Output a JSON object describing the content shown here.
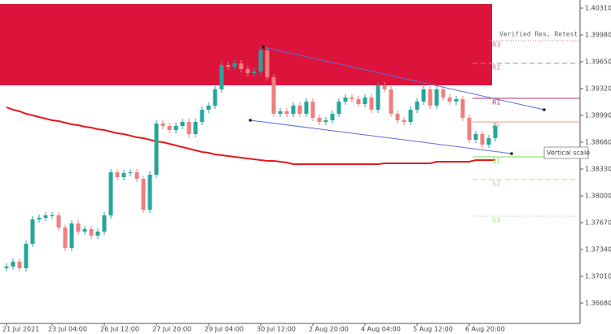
{
  "chart_data": {
    "type": "candlestick",
    "categories": [
      "21 Jul 2021",
      null,
      null,
      null,
      null,
      null,
      null,
      "23 Jul 04:00",
      null,
      null,
      null,
      null,
      null,
      null,
      null,
      "26 Jul 12:00",
      null,
      null,
      null,
      null,
      null,
      null,
      null,
      "27 Jul 20:00",
      null,
      null,
      null,
      null,
      null,
      null,
      null,
      "29 Jul 04:00",
      null,
      null,
      null,
      null,
      null,
      null,
      null,
      "30 Jul 12:00",
      null,
      null,
      null,
      null,
      null,
      null,
      null,
      "2 Aug 20:00",
      null,
      null,
      null,
      null,
      null,
      null,
      null,
      "4 Aug 04:00",
      null,
      null,
      null,
      null,
      null,
      null,
      null,
      "5 Aug 12:00",
      null,
      null,
      null,
      null,
      null,
      null,
      null,
      "6 Aug 20:00",
      null,
      null,
      null,
      null
    ],
    "open": [
      1.3711,
      1.3713,
      1.3719,
      1.3711,
      1.3741,
      1.3771,
      1.3773,
      1.3776,
      1.3776,
      1.3761,
      1.3736,
      1.3766,
      1.3756,
      1.3759,
      1.3751,
      1.3756,
      1.3776,
      1.3829,
      1.3823,
      1.3828,
      1.3829,
      1.3821,
      1.3783,
      1.3826,
      1.3889,
      1.3886,
      1.3881,
      1.3886,
      1.3891,
      1.3876,
      1.3891,
      1.3906,
      1.3911,
      1.3931,
      1.3961,
      1.3959,
      1.3963,
      1.3956,
      1.3951,
      1.3953,
      1.3979,
      1.3946,
      1.3901,
      1.3904,
      1.3901,
      1.3911,
      1.3901,
      1.3916,
      1.3896,
      1.3891,
      1.3893,
      1.3901,
      1.3916,
      1.3921,
      1.3919,
      1.3913,
      1.3921,
      1.3906,
      1.3936,
      1.3931,
      1.3901,
      1.3893,
      1.3891,
      1.3906,
      1.3916,
      1.3931,
      1.3911,
      1.3931,
      1.3921,
      1.3916,
      1.3919,
      1.3896,
      1.3869,
      1.3876,
      1.3863,
      1.3871
    ],
    "high": [
      1.3717,
      1.3723,
      1.3723,
      1.3745,
      1.3775,
      1.3777,
      1.378,
      1.378,
      1.378,
      1.3765,
      1.377,
      1.377,
      1.3763,
      1.3763,
      1.376,
      1.378,
      1.3833,
      1.3833,
      1.3832,
      1.3833,
      1.3833,
      1.3825,
      1.383,
      1.3893,
      1.3893,
      1.389,
      1.389,
      1.3895,
      1.3895,
      1.3895,
      1.391,
      1.3915,
      1.3935,
      1.3965,
      1.3965,
      1.3967,
      1.3967,
      1.396,
      1.3957,
      1.3983,
      1.3983,
      1.395,
      1.3908,
      1.3908,
      1.3915,
      1.3915,
      1.392,
      1.392,
      1.39,
      1.3897,
      1.3905,
      1.392,
      1.3925,
      1.3925,
      1.3923,
      1.3925,
      1.3925,
      1.394,
      1.394,
      1.3935,
      1.3905,
      1.3897,
      1.391,
      1.392,
      1.3935,
      1.3935,
      1.3935,
      1.3935,
      1.3925,
      1.3923,
      1.3923,
      1.39,
      1.388,
      1.388,
      1.3875,
      1.389
    ],
    "low": [
      1.3707,
      1.3709,
      1.3707,
      1.3707,
      1.3737,
      1.3767,
      1.3769,
      1.3772,
      1.3757,
      1.3732,
      1.3732,
      1.3752,
      1.3752,
      1.3747,
      1.3747,
      1.3752,
      1.3772,
      1.3819,
      1.3819,
      1.3824,
      1.3817,
      1.3779,
      1.3779,
      1.3822,
      1.3882,
      1.3877,
      1.3877,
      1.3882,
      1.3872,
      1.3872,
      1.3887,
      1.3902,
      1.3907,
      1.3927,
      1.3955,
      1.3955,
      1.3952,
      1.3947,
      1.3947,
      1.3949,
      1.3942,
      1.3897,
      1.3897,
      1.3897,
      1.3897,
      1.3897,
      1.3897,
      1.3892,
      1.3887,
      1.3887,
      1.3889,
      1.3897,
      1.3912,
      1.3915,
      1.3909,
      1.3909,
      1.3902,
      1.3902,
      1.3927,
      1.3897,
      1.3889,
      1.3887,
      1.3887,
      1.3902,
      1.3912,
      1.3907,
      1.3907,
      1.3917,
      1.3912,
      1.3912,
      1.3892,
      1.3865,
      1.3865,
      1.3859,
      1.3859,
      1.3867
    ],
    "close": [
      1.3713,
      1.3719,
      1.3711,
      1.3741,
      1.3771,
      1.3773,
      1.3776,
      1.3776,
      1.3761,
      1.3736,
      1.3766,
      1.3756,
      1.3759,
      1.3751,
      1.3756,
      1.3776,
      1.3829,
      1.3823,
      1.3828,
      1.3829,
      1.3821,
      1.3783,
      1.3826,
      1.3889,
      1.3886,
      1.3881,
      1.3886,
      1.3891,
      1.3876,
      1.3891,
      1.3906,
      1.3911,
      1.3931,
      1.3961,
      1.3959,
      1.3963,
      1.3956,
      1.3951,
      1.3953,
      1.3979,
      1.3946,
      1.3901,
      1.3904,
      1.3901,
      1.3911,
      1.3901,
      1.3916,
      1.3896,
      1.3891,
      1.3893,
      1.3901,
      1.3916,
      1.3921,
      1.3919,
      1.3913,
      1.3921,
      1.3906,
      1.3936,
      1.3931,
      1.3901,
      1.3893,
      1.3891,
      1.3906,
      1.3916,
      1.3931,
      1.3911,
      1.3931,
      1.3921,
      1.3916,
      1.3919,
      1.3896,
      1.3869,
      1.3876,
      1.3863,
      1.3871,
      1.3886
    ],
    "up_color": "#26a69a",
    "down_color": "#ef7f7f",
    "ma": {
      "color": "#e41a1c",
      "values": [
        1.3909,
        1.3906,
        1.3904,
        1.3901,
        1.3899,
        1.3897,
        1.3895,
        1.3893,
        1.3892,
        1.389,
        1.3888,
        1.3887,
        1.3885,
        1.3884,
        1.3882,
        1.3881,
        1.3879,
        1.3877,
        1.3876,
        1.3874,
        1.3872,
        1.3871,
        1.3869,
        1.3867,
        1.3866,
        1.3864,
        1.3862,
        1.386,
        1.3858,
        1.3856,
        1.3854,
        1.3853,
        1.3851,
        1.385,
        1.3849,
        1.3848,
        1.3847,
        1.3846,
        1.3845,
        1.3844,
        1.3843,
        1.3843,
        1.3842,
        1.3841,
        1.3839,
        1.3839,
        1.3839,
        1.3839,
        1.3839,
        1.3839,
        1.3839,
        1.3839,
        1.3839,
        1.3839,
        1.3839,
        1.3839,
        1.3839,
        1.3839,
        1.384,
        1.384,
        1.384,
        1.384,
        1.384,
        1.384,
        1.384,
        1.384,
        1.3842,
        1.3842,
        1.3842,
        1.3842,
        1.3842,
        1.3842,
        1.3844,
        1.3844,
        1.3844,
        1.3844
      ]
    },
    "zone": {
      "label": "Verified Res, Retest",
      "top": 1.4036,
      "bottom": 1.3936,
      "color": "#dc143c"
    },
    "levels": [
      {
        "label": "R3",
        "value": 1.3991,
        "color": "#e0708f",
        "style": "dotted"
      },
      {
        "label": "R2",
        "value": 1.3963,
        "color": "#e0708f",
        "style": "dashed"
      },
      {
        "label": "R1",
        "value": 1.392,
        "color": "#b0306a",
        "style": "solid"
      },
      {
        "label": "PP",
        "value": 1.3891,
        "color": "#f0a070",
        "style": "solid"
      },
      {
        "label": "S1",
        "value": 1.3848,
        "color": "#7ed957",
        "style": "solid"
      },
      {
        "label": "S2",
        "value": 1.382,
        "color": "#9be07a",
        "style": "dashed"
      },
      {
        "label": "S3",
        "value": 1.3775,
        "color": "#9be07a",
        "style": "dotted"
      }
    ],
    "trendlines": [
      {
        "color": "#5b6fd6",
        "x": [
          39.4,
          82.5
        ],
        "y": [
          1.3983,
          1.3906
        ]
      },
      {
        "color": "#5b6fd6",
        "x": [
          37.4,
          77.5
        ],
        "y": [
          1.3893,
          1.3852
        ]
      }
    ],
    "vertical_scale_label": "Vertical scale",
    "ylim": [
      1.3643,
      1.4041
    ],
    "yticks": [
      {
        "value": 1.4031,
        "label": "1.40310"
      },
      {
        "value": 1.3998,
        "label": "1.39980"
      },
      {
        "value": 1.3965,
        "label": "1.39650"
      },
      {
        "value": 1.3932,
        "label": "1.39320"
      },
      {
        "value": 1.3899,
        "label": "1.38990"
      },
      {
        "value": 1.3866,
        "label": "1.38660"
      },
      {
        "value": 1.3833,
        "label": "1.38330"
      },
      {
        "value": 1.38,
        "label": "1.38000"
      },
      {
        "value": 1.3767,
        "label": "1.37670"
      },
      {
        "value": 1.3734,
        "label": "1.37340"
      },
      {
        "value": 1.3701,
        "label": "1.37010"
      },
      {
        "value": 1.3668,
        "label": "1.36680"
      }
    ]
  }
}
